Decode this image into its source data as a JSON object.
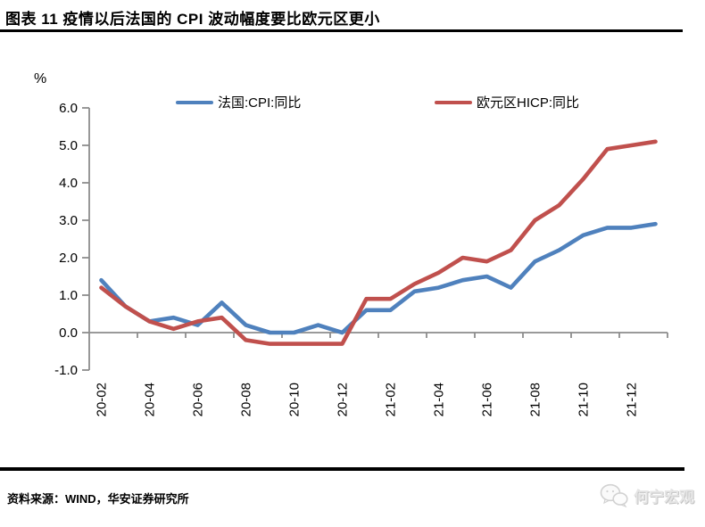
{
  "page": {
    "title": "图表 11 疫情以后法国的 CPI 波动幅度要比欧元区更小",
    "source_note": "资料来源：WIND，华安证券研究所",
    "watermark_text": "何宁宏观"
  },
  "colors": {
    "france_blue": "#4F81BD",
    "eurozone_red": "#C0504D",
    "axis_gray": "#8C8C8C",
    "rule_black": "#000000"
  },
  "chart_data": {
    "type": "line",
    "title": "",
    "unit_label": "%",
    "xlabel": "",
    "ylabel": "%",
    "ylim": [
      -1.0,
      6.0
    ],
    "grid": false,
    "legend_position": "top",
    "x": [
      "20-02",
      "20-03",
      "20-04",
      "20-05",
      "20-06",
      "20-07",
      "20-08",
      "20-09",
      "20-10",
      "20-11",
      "20-12",
      "21-01",
      "21-02",
      "21-03",
      "21-04",
      "21-05",
      "21-06",
      "21-07",
      "21-08",
      "21-09",
      "21-10",
      "21-11",
      "21-12",
      "22-01"
    ],
    "x_tick_labels": [
      "20-02",
      "20-04",
      "20-06",
      "20-08",
      "20-10",
      "20-12",
      "21-02",
      "21-04",
      "21-06",
      "21-08",
      "21-10",
      "21-12"
    ],
    "y_ticks": [
      6.0,
      5.0,
      4.0,
      3.0,
      2.0,
      1.0,
      0.0,
      -1.0
    ],
    "series": [
      {
        "id": "france-cpi",
        "name": "法国:CPI:同比",
        "color": "#4F81BD",
        "values": [
          1.4,
          0.7,
          0.3,
          0.4,
          0.2,
          0.8,
          0.2,
          0.0,
          0.0,
          0.2,
          0.0,
          0.6,
          0.6,
          1.1,
          1.2,
          1.4,
          1.5,
          1.2,
          1.9,
          2.2,
          2.6,
          2.8,
          2.8,
          2.9
        ]
      },
      {
        "id": "eurozone-hicp",
        "name": "欧元区HICP:同比",
        "color": "#C0504D",
        "values": [
          1.2,
          0.7,
          0.3,
          0.1,
          0.3,
          0.4,
          -0.2,
          -0.3,
          -0.3,
          -0.3,
          -0.3,
          0.9,
          0.9,
          1.3,
          1.6,
          2.0,
          1.9,
          2.2,
          3.0,
          3.4,
          4.1,
          4.9,
          5.0,
          5.1
        ]
      }
    ]
  }
}
